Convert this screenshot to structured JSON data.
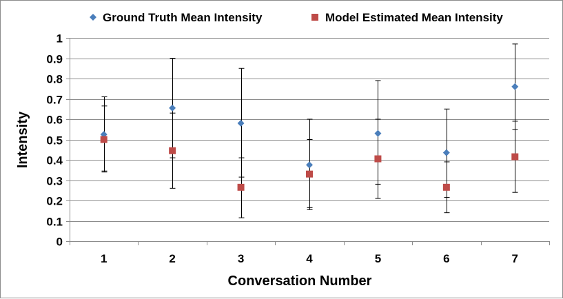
{
  "chart_data": {
    "type": "scatter",
    "xlabel": "Conversation Number",
    "ylabel": "Intensity",
    "categories": [
      "1",
      "2",
      "3",
      "4",
      "5",
      "6",
      "7"
    ],
    "ylim": [
      0,
      1
    ],
    "yticks": [
      "0",
      "0.1",
      "0.2",
      "0.3",
      "0.4",
      "0.5",
      "0.6",
      "0.7",
      "0.8",
      "0.9",
      "1"
    ],
    "grid": "horizontal",
    "legend_position": "top",
    "series": [
      {
        "name": "Ground Truth Mean Intensity",
        "marker": "diamond",
        "color": "#4a7ebb",
        "values": [
          0.525,
          0.655,
          0.58,
          0.375,
          0.53,
          0.435,
          0.76
        ],
        "error_low": [
          0.345,
          0.41,
          0.315,
          0.165,
          0.28,
          0.215,
          0.55
        ],
        "error_high": [
          0.71,
          0.9,
          0.85,
          0.6,
          0.79,
          0.65,
          0.97
        ]
      },
      {
        "name": "Model Estimated Mean Intensity",
        "marker": "square",
        "color": "#be4b48",
        "values": [
          0.5,
          0.445,
          0.265,
          0.33,
          0.405,
          0.265,
          0.415
        ],
        "error_low": [
          0.34,
          0.26,
          0.115,
          0.155,
          0.21,
          0.14,
          0.24
        ],
        "error_high": [
          0.665,
          0.63,
          0.41,
          0.5,
          0.6,
          0.39,
          0.59
        ]
      }
    ]
  }
}
